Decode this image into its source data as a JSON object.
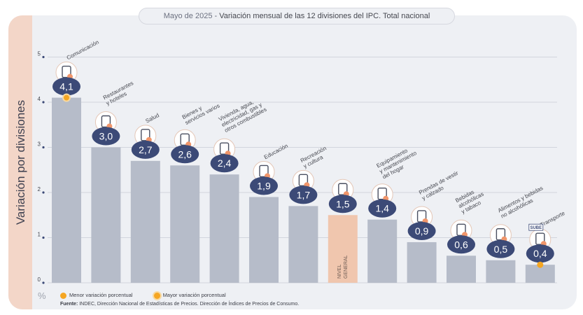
{
  "header": {
    "title_part1": "Mayo de 2025 - ",
    "title_part2": "Variación mensual de las 12 divisiones del IPC. Total nacional"
  },
  "chart_data": {
    "type": "bar",
    "title": "Mayo de 2025 - Variación mensual de las 12 divisiones del IPC. Total nacional",
    "ylabel": "Variación por divisiones",
    "yunit": "%",
    "ylim": [
      0,
      5
    ],
    "yticks": [
      "0",
      "1",
      "2",
      "3",
      "4",
      "5"
    ],
    "grid": true,
    "categories": [
      [
        "Comunicación"
      ],
      [
        "Restaurantes",
        "y hoteles"
      ],
      [
        "Salud"
      ],
      [
        "Bienes y",
        "servicios varios"
      ],
      [
        "Vivienda, agua,",
        "electricidad, gas y",
        "otros combustibles"
      ],
      [
        "Educación"
      ],
      [
        "Recreación",
        "y cultura"
      ],
      [
        "NIVEL",
        "GENERAL"
      ],
      [
        "Equipamiento",
        "y mantenimiento",
        "del hogar"
      ],
      [
        "Prendas de vestir",
        "y calzado"
      ],
      [
        "Bebidas",
        "alcohólicas",
        "y tabaco"
      ],
      [
        "Alimentos y bebidas",
        "no alcohólicas"
      ],
      [
        "Transporte"
      ]
    ],
    "values": [
      4.1,
      3.0,
      2.7,
      2.6,
      2.4,
      1.9,
      1.7,
      1.5,
      1.4,
      0.9,
      0.6,
      0.5,
      0.4
    ],
    "value_labels": [
      "4,1",
      "3,0",
      "2,7",
      "2,6",
      "2,4",
      "1,9",
      "1,7",
      "1,5",
      "1,4",
      "0,9",
      "0,6",
      "0,5",
      "0,4"
    ],
    "highlight_index": 7,
    "max_marker_index": 0,
    "min_marker_index": 12,
    "icons": [
      "phone-icon",
      "food-icon",
      "medical-cross-icon",
      "scissors-comb-icon",
      "lightbulb-icon",
      "book-icon",
      "umbrella-icon",
      "basket-icon",
      "air-conditioner-icon",
      "tshirt-icon",
      "bottle-icon",
      "chicken-icon",
      "bus-card-icon"
    ],
    "colors": {
      "bar": "#b6bcc9",
      "bar_highlight": "#f0c6ae",
      "badge": "#3c4a77",
      "marker": "#f5a623",
      "grid": "#c8ccd6",
      "label": "#45474f"
    }
  },
  "legend": {
    "min_label": "Menor variación porcentual",
    "max_label": "Mayor variación porcentual"
  },
  "source": {
    "prefix": "Fuente:",
    "text": " INDEC, Dirección Nacional de Estadísticas de Precios. Dirección de Índices de Precios de Consumo."
  },
  "badge_sube": "SUBE"
}
